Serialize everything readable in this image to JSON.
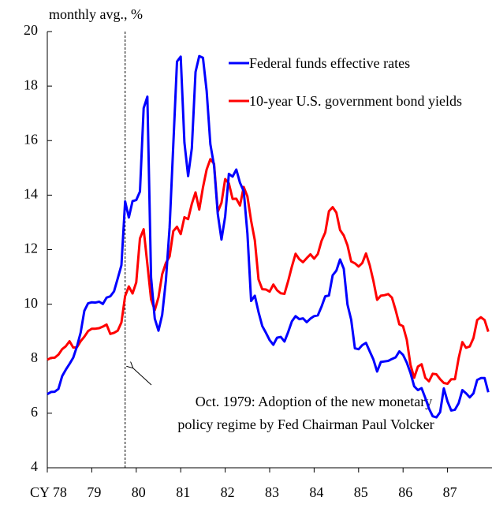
{
  "chart_data": {
    "type": "line",
    "y_label": "monthly avg., %",
    "annotation": [
      "Oct. 1979: Adoption of the new monetary",
      "policy regime by Fed Chairman Paul Volcker"
    ],
    "marker_x": 1979.75,
    "xlim": [
      1978,
      1988
    ],
    "xticks": [
      {
        "value": 1978,
        "label": "CY 78"
      },
      {
        "value": 1979,
        "label": "79"
      },
      {
        "value": 1980,
        "label": "80"
      },
      {
        "value": 1981,
        "label": "81"
      },
      {
        "value": 1982,
        "label": "82"
      },
      {
        "value": 1983,
        "label": "83"
      },
      {
        "value": 1984,
        "label": "84"
      },
      {
        "value": 1985,
        "label": "85"
      },
      {
        "value": 1986,
        "label": "86"
      },
      {
        "value": 1987,
        "label": "87"
      }
    ],
    "ylim": [
      4,
      20
    ],
    "yticks": [
      4,
      6,
      8,
      10,
      12,
      14,
      16,
      18,
      20
    ],
    "x": [
      1978.0,
      1978.083,
      1978.167,
      1978.25,
      1978.333,
      1978.417,
      1978.5,
      1978.583,
      1978.667,
      1978.75,
      1978.833,
      1978.917,
      1979.0,
      1979.083,
      1979.167,
      1979.25,
      1979.333,
      1979.417,
      1979.5,
      1979.583,
      1979.667,
      1979.75,
      1979.833,
      1979.917,
      1980.0,
      1980.083,
      1980.167,
      1980.25,
      1980.333,
      1980.417,
      1980.5,
      1980.583,
      1980.667,
      1980.75,
      1980.833,
      1980.917,
      1981.0,
      1981.083,
      1981.167,
      1981.25,
      1981.333,
      1981.417,
      1981.5,
      1981.583,
      1981.667,
      1981.75,
      1981.833,
      1981.917,
      1982.0,
      1982.083,
      1982.167,
      1982.25,
      1982.333,
      1982.417,
      1982.5,
      1982.583,
      1982.667,
      1982.75,
      1982.833,
      1982.917,
      1983.0,
      1983.083,
      1983.167,
      1983.25,
      1983.333,
      1983.417,
      1983.5,
      1983.583,
      1983.667,
      1983.75,
      1983.833,
      1983.917,
      1984.0,
      1984.083,
      1984.167,
      1984.25,
      1984.333,
      1984.417,
      1984.5,
      1984.583,
      1984.667,
      1984.75,
      1984.833,
      1984.917,
      1985.0,
      1985.083,
      1985.167,
      1985.25,
      1985.333,
      1985.417,
      1985.5,
      1985.583,
      1985.667,
      1985.75,
      1985.833,
      1985.917,
      1986.0,
      1986.083,
      1986.167,
      1986.25,
      1986.333,
      1986.417,
      1986.5,
      1986.583,
      1986.667,
      1986.75,
      1986.833,
      1986.917,
      1987.0,
      1987.083,
      1987.167,
      1987.25,
      1987.333,
      1987.417,
      1987.5,
      1987.583,
      1987.667,
      1987.75,
      1987.833,
      1987.917
    ],
    "series": [
      {
        "name": "Federal funds effective rates",
        "color": "#0000ff",
        "values": [
          6.7,
          6.78,
          6.79,
          6.89,
          7.36,
          7.6,
          7.81,
          8.04,
          8.45,
          8.96,
          9.76,
          10.03,
          10.07,
          10.06,
          10.09,
          10.01,
          10.24,
          10.29,
          10.47,
          10.94,
          11.43,
          13.77,
          13.18,
          13.78,
          13.82,
          14.13,
          17.19,
          17.61,
          10.98,
          9.47,
          9.03,
          9.61,
          10.87,
          12.81,
          15.85,
          18.9,
          19.08,
          15.93,
          14.7,
          15.72,
          18.52,
          19.1,
          19.04,
          17.82,
          15.87,
          15.08,
          13.31,
          12.37,
          13.22,
          14.78,
          14.68,
          14.94,
          14.45,
          14.15,
          12.59,
          10.12,
          10.31,
          9.71,
          9.2,
          8.95,
          8.68,
          8.51,
          8.77,
          8.8,
          8.63,
          8.98,
          9.37,
          9.56,
          9.45,
          9.48,
          9.34,
          9.47,
          9.56,
          9.59,
          9.91,
          10.29,
          10.32,
          11.06,
          11.23,
          11.64,
          11.3,
          9.99,
          9.43,
          8.38,
          8.35,
          8.5,
          8.58,
          8.27,
          7.97,
          7.53,
          7.88,
          7.9,
          7.92,
          7.99,
          8.05,
          8.27,
          8.14,
          7.86,
          7.48,
          6.99,
          6.85,
          6.92,
          6.56,
          6.17,
          5.89,
          5.85,
          6.04,
          6.91,
          6.43,
          6.1,
          6.13,
          6.37,
          6.85,
          6.73,
          6.58,
          6.73,
          7.22,
          7.29,
          7.29,
          6.77
        ]
      },
      {
        "name": "10-year U.S. government bond yields",
        "color": "#ff0000",
        "values": [
          7.96,
          8.03,
          8.04,
          8.15,
          8.35,
          8.46,
          8.64,
          8.41,
          8.42,
          8.64,
          8.81,
          9.01,
          9.1,
          9.1,
          9.12,
          9.18,
          9.25,
          8.91,
          8.95,
          9.03,
          9.33,
          10.3,
          10.65,
          10.39,
          10.8,
          12.41,
          12.75,
          11.47,
          10.18,
          9.78,
          10.25,
          11.1,
          11.51,
          11.75,
          12.68,
          12.84,
          12.57,
          13.19,
          13.12,
          13.68,
          14.1,
          13.47,
          14.28,
          14.94,
          15.32,
          15.15,
          13.39,
          13.72,
          14.59,
          14.43,
          13.86,
          13.87,
          13.62,
          14.3,
          13.95,
          13.06,
          12.34,
          10.91,
          10.55,
          10.54,
          10.46,
          10.72,
          10.51,
          10.4,
          10.38,
          10.85,
          11.38,
          11.85,
          11.65,
          11.54,
          11.69,
          11.83,
          11.67,
          11.84,
          12.32,
          12.63,
          13.41,
          13.56,
          13.36,
          12.72,
          12.52,
          12.16,
          11.57,
          11.5,
          11.38,
          11.51,
          11.86,
          11.43,
          10.85,
          10.16,
          10.31,
          10.33,
          10.37,
          10.24,
          9.78,
          9.26,
          9.19,
          8.7,
          7.78,
          7.3,
          7.71,
          7.8,
          7.3,
          7.17,
          7.45,
          7.43,
          7.25,
          7.11,
          7.08,
          7.25,
          7.25,
          8.02,
          8.61,
          8.4,
          8.45,
          8.76,
          9.42,
          9.52,
          9.42,
          8.99
        ]
      }
    ]
  }
}
